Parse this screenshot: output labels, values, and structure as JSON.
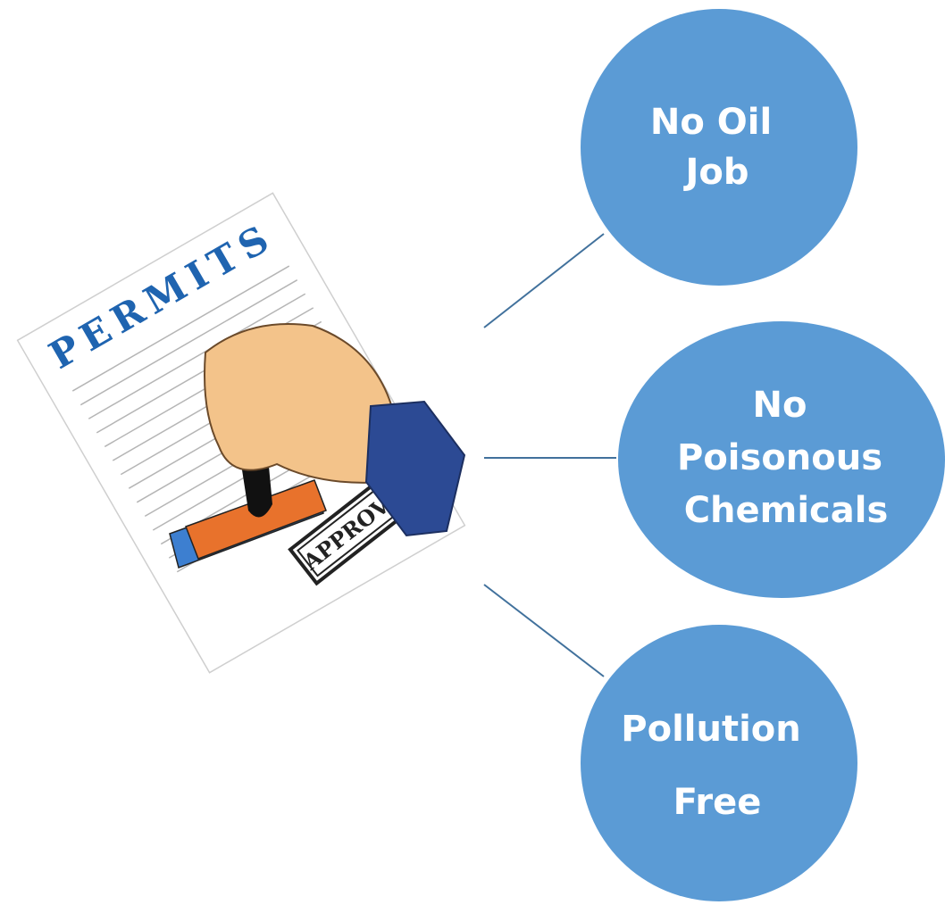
{
  "image": {
    "title": "PERMITS",
    "stamp": "APPROVED"
  },
  "nodes": [
    {
      "lines": [
        "No Oil",
        "Job"
      ]
    },
    {
      "lines": [
        "No",
        "Poisonous",
        "Chemicals"
      ]
    },
    {
      "lines": [
        "Pollution",
        "Free"
      ]
    }
  ]
}
